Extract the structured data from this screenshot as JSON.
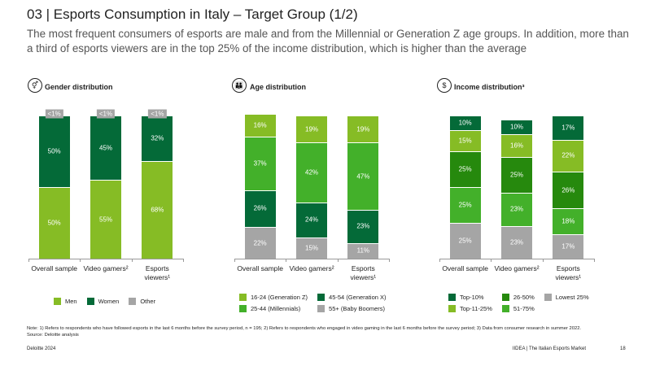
{
  "header": {
    "title": "03 | Esports Consumption in Italy – Target Group (1/2)",
    "subtitle": "The most frequent consumers of esports are male and from the Millennial or Generation Z age groups. In addition, more than a third of esports viewers are in the top 25% of the income distribution, which is higher than the average"
  },
  "chart_data": [
    {
      "type": "bar",
      "stacked": true,
      "title": "Gender distribution",
      "stack_order": "bottom-up",
      "legend_rows": 1,
      "categories": [
        "Overall sample",
        "Video gamers²",
        "Esports viewers¹"
      ],
      "ylim": [
        0,
        100
      ],
      "series": [
        {
          "name": "Men",
          "color": "#86bc25",
          "values": [
            50,
            55,
            68
          ],
          "value_labels": [
            "50%",
            "55%",
            "68%"
          ]
        },
        {
          "name": "Women",
          "color": "#046a38",
          "values": [
            50,
            45,
            32
          ],
          "value_labels": [
            "50%",
            "45%",
            "32%"
          ]
        },
        {
          "name": "Other",
          "color": "#a5a5a5",
          "values": [
            0.5,
            0.5,
            0.5
          ],
          "value_labels": [
            "<1%",
            "<1%",
            "<1%"
          ]
        }
      ]
    },
    {
      "type": "bar",
      "stacked": true,
      "title": "Age distribution",
      "stack_order": "top-down",
      "legend_rows": 2,
      "categories": [
        "Overall sample",
        "Video gamers²",
        "Esports viewers¹"
      ],
      "ylim": [
        0,
        100
      ],
      "series": [
        {
          "name": "16-24 (Generation Z)",
          "color": "#86bc25",
          "values": [
            16,
            19,
            19
          ],
          "value_labels": [
            "16%",
            "19%",
            "19%"
          ]
        },
        {
          "name": "25-44 (Millennials)",
          "color": "#43b02a",
          "values": [
            37,
            42,
            47
          ],
          "value_labels": [
            "37%",
            "42%",
            "47%"
          ]
        },
        {
          "name": "45-54 (Generation X)",
          "color": "#046a38",
          "values": [
            26,
            24,
            23
          ],
          "value_labels": [
            "26%",
            "24%",
            "23%"
          ]
        },
        {
          "name": "55+ (Baby Boomers)",
          "color": "#a5a5a5",
          "values": [
            22,
            15,
            11
          ],
          "value_labels": [
            "22%",
            "15%",
            "11%"
          ]
        }
      ]
    },
    {
      "type": "bar",
      "stacked": true,
      "title": "Income distribution³",
      "stack_order": "top-down",
      "legend_rows": 2,
      "categories": [
        "Overall sample",
        "Video gamers²",
        "Esports viewers¹"
      ],
      "ylim": [
        0,
        100
      ],
      "series": [
        {
          "name": "Top-10%",
          "color": "#046a38",
          "values": [
            10,
            10,
            17
          ],
          "value_labels": [
            "10%",
            "10%",
            "17%"
          ]
        },
        {
          "name": "Top-11-25%",
          "color": "#86bc25",
          "values": [
            15,
            16,
            22
          ],
          "value_labels": [
            "15%",
            "16%",
            "22%"
          ]
        },
        {
          "name": "26-50%",
          "color": "#26890d",
          "values": [
            25,
            25,
            26
          ],
          "value_labels": [
            "25%",
            "25%",
            "26%"
          ]
        },
        {
          "name": "51-75%",
          "color": "#43b02a",
          "values": [
            25,
            23,
            18
          ],
          "value_labels": [
            "25%",
            "23%",
            "18%"
          ]
        },
        {
          "name": "Lowest 25%",
          "color": "#a5a5a5",
          "values": [
            25,
            23,
            17
          ],
          "value_labels": [
            "25%",
            "23%",
            "17%"
          ]
        }
      ]
    }
  ],
  "footer": {
    "note": "Note: 1) Refers to respondents who have followed esports in the last 6 months before the survey period, n = 195; 2) Refers to respondents who engaged in video gaming in the last 6 months before the survey period; 3) Data from consumer research in summer 2022.",
    "source": "Source: Deloitte analysis",
    "left": "Deloitte 2024",
    "right": "IIDEA | The Italian Esports Market",
    "page": "18"
  }
}
